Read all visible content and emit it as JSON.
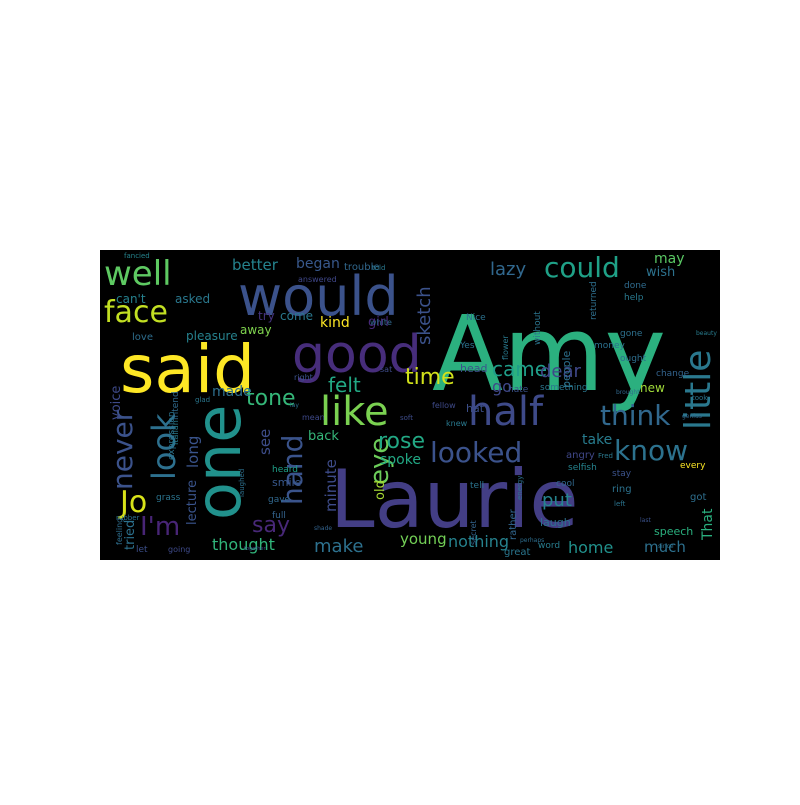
{
  "wordcloud": {
    "background": "#000000",
    "palette": {
      "dark_purple": "#440154",
      "purple": "#472c7a",
      "indigo": "#3b518b",
      "slate_blue": "#2c718e",
      "teal": "#21908d",
      "sea_green": "#27ad81",
      "green": "#5cc863",
      "lime": "#aadc32",
      "yellow": "#fde725"
    },
    "words": [
      {
        "text": "Amy",
        "color": "#2bb07f"
      },
      {
        "text": "Laurie",
        "color": "#433e85"
      },
      {
        "text": "said",
        "color": "#fde725"
      },
      {
        "text": "one",
        "color": "#21918c"
      },
      {
        "text": "would",
        "color": "#3b528b"
      },
      {
        "text": "good",
        "color": "#472d7b"
      },
      {
        "text": "well",
        "color": "#5ec962"
      },
      {
        "text": "half",
        "color": "#3e4a89"
      },
      {
        "text": "like",
        "color": "#7ad151"
      },
      {
        "text": "little",
        "color": "#2a788e"
      },
      {
        "text": "face",
        "color": "#c2df23"
      },
      {
        "text": "look",
        "color": "#2d708e"
      },
      {
        "text": "could",
        "color": "#1fa187"
      },
      {
        "text": "think",
        "color": "#31688e"
      },
      {
        "text": "looked",
        "color": "#3b528b"
      },
      {
        "text": "know",
        "color": "#2c728e"
      },
      {
        "text": "eye",
        "color": "#6ccd5a"
      },
      {
        "text": "hand",
        "color": "#3a538b"
      },
      {
        "text": "never",
        "color": "#3b528b"
      },
      {
        "text": "Jo",
        "color": "#d8e219"
      },
      {
        "text": "I'm",
        "color": "#482576"
      },
      {
        "text": "time",
        "color": "#d2e21b"
      },
      {
        "text": "tone",
        "color": "#35b779"
      },
      {
        "text": "rose",
        "color": "#22a884"
      },
      {
        "text": "came",
        "color": "#1f9e89"
      },
      {
        "text": "felt",
        "color": "#22a884"
      },
      {
        "text": "say",
        "color": "#482878"
      },
      {
        "text": "lazy",
        "color": "#31688e"
      },
      {
        "text": "dear",
        "color": "#3f4889"
      },
      {
        "text": "put",
        "color": "#25848e"
      },
      {
        "text": "make",
        "color": "#2d718e"
      },
      {
        "text": "home",
        "color": "#21918c"
      },
      {
        "text": "nothing",
        "color": "#26828e"
      },
      {
        "text": "thought",
        "color": "#31b57b"
      },
      {
        "text": "kind",
        "color": "#fde725"
      },
      {
        "text": "young",
        "color": "#73d056"
      },
      {
        "text": "sketch",
        "color": "#3b528b"
      },
      {
        "text": "minute",
        "color": "#3e4c8a"
      },
      {
        "text": "spoke",
        "color": "#22a884"
      },
      {
        "text": "take",
        "color": "#287c8e"
      },
      {
        "text": "better",
        "color": "#25838e"
      },
      {
        "text": "began",
        "color": "#38588c"
      },
      {
        "text": "go",
        "color": "#3f4788"
      },
      {
        "text": "made",
        "color": "#2e6f8e"
      },
      {
        "text": "may",
        "color": "#5ac864"
      },
      {
        "text": "wish",
        "color": "#2c728e"
      },
      {
        "text": "long",
        "color": "#3a548c"
      },
      {
        "text": "see",
        "color": "#3d4d8a"
      },
      {
        "text": "back",
        "color": "#35b779"
      },
      {
        "text": "much",
        "color": "#2d708e"
      },
      {
        "text": "That",
        "color": "#2ab07f"
      },
      {
        "text": "girl",
        "color": "#482878"
      },
      {
        "text": "old",
        "color": "#a8db34"
      },
      {
        "text": "voice",
        "color": "#3e4a89"
      },
      {
        "text": "lecture",
        "color": "#3a548c"
      },
      {
        "text": "tried",
        "color": "#2c718e"
      },
      {
        "text": "can't",
        "color": "#26818e"
      },
      {
        "text": "asked",
        "color": "#2a788e"
      },
      {
        "text": "try",
        "color": "#46337f"
      },
      {
        "text": "come",
        "color": "#2a788e"
      },
      {
        "text": "away",
        "color": "#7fd34e"
      },
      {
        "text": "pleasure",
        "color": "#26828e"
      },
      {
        "text": "trouble",
        "color": "#31688e"
      },
      {
        "text": "answered",
        "color": "#3f4788"
      },
      {
        "text": "fancied",
        "color": "#25848e"
      },
      {
        "text": "love",
        "color": "#2e6e8e"
      },
      {
        "text": "smile",
        "color": "#38588c"
      },
      {
        "text": "heard",
        "color": "#1fa088"
      },
      {
        "text": "mean",
        "color": "#3e4989"
      },
      {
        "text": "hat",
        "color": "#3c4f8a"
      },
      {
        "text": "head",
        "color": "#3b528b"
      },
      {
        "text": "Yes",
        "color": "#2c728e"
      },
      {
        "text": "laugh",
        "color": "#2d718e"
      },
      {
        "text": "word",
        "color": "#287d8e"
      },
      {
        "text": "great",
        "color": "#2a768e"
      },
      {
        "text": "angry",
        "color": "#3f4788"
      },
      {
        "text": "people",
        "color": "#2c718e"
      },
      {
        "text": "new",
        "color": "#a0da39"
      },
      {
        "text": "help",
        "color": "#29798e"
      },
      {
        "text": "done",
        "color": "#2f6b8e"
      },
      {
        "text": "speech",
        "color": "#2ab07f"
      },
      {
        "text": "got",
        "color": "#2e6f8e"
      },
      {
        "text": "every",
        "color": "#fde725"
      },
      {
        "text": "ring",
        "color": "#2c728e"
      },
      {
        "text": "stay",
        "color": "#3b528b"
      },
      {
        "text": "rather",
        "color": "#31668e"
      },
      {
        "text": "tell",
        "color": "#2b748e"
      },
      {
        "text": "secret",
        "color": "#33638d"
      },
      {
        "text": "cool",
        "color": "#31688e"
      },
      {
        "text": "something",
        "color": "#2a778e"
      },
      {
        "text": "without",
        "color": "#2b758e"
      },
      {
        "text": "hate",
        "color": "#3b528b"
      },
      {
        "text": "gone",
        "color": "#2d708e"
      },
      {
        "text": "ought",
        "color": "#2e6e8e"
      },
      {
        "text": "money",
        "color": "#2c718e"
      },
      {
        "text": "knew",
        "color": "#29798e"
      },
      {
        "text": "selfish",
        "color": "#25838e"
      },
      {
        "text": "grass",
        "color": "#2b748e"
      },
      {
        "text": "full",
        "color": "#33638d"
      },
      {
        "text": "gave",
        "color": "#31688e"
      },
      {
        "text": "let",
        "color": "#3c4f8a"
      },
      {
        "text": "going",
        "color": "#3e4a89"
      },
      {
        "text": "feeling",
        "color": "#2e6e8e"
      },
      {
        "text": "rubber",
        "color": "#2c718e"
      },
      {
        "text": "Italian",
        "color": "#287c8e"
      },
      {
        "text": "expression",
        "color": "#2b748e"
      },
      {
        "text": "intend",
        "color": "#306a8e"
      },
      {
        "text": "laughed",
        "color": "#2d708e"
      },
      {
        "text": "right",
        "color": "#3b528b"
      },
      {
        "text": "sat",
        "color": "#3e4c8a"
      },
      {
        "text": "white",
        "color": "#31688e"
      },
      {
        "text": "told",
        "color": "#2a788e"
      },
      {
        "text": "Nice",
        "color": "#2c728e"
      },
      {
        "text": "returned",
        "color": "#2e6f8e"
      },
      {
        "text": "change",
        "color": "#33638d"
      },
      {
        "text": "flower",
        "color": "#29798e"
      },
      {
        "text": "left",
        "color": "#2b748e"
      },
      {
        "text": "fellow",
        "color": "#3e4a89"
      },
      {
        "text": "brought",
        "color": "#31688e"
      },
      {
        "text": "energy",
        "color": "#2c718e"
      },
      {
        "text": "glad",
        "color": "#2a778e"
      },
      {
        "text": "shade",
        "color": "#33638d"
      },
      {
        "text": "together",
        "color": "#3c4f8a"
      },
      {
        "text": "perhaps",
        "color": "#2e6e8e"
      },
      {
        "text": "last",
        "color": "#3b528b"
      },
      {
        "text": "took",
        "color": "#2b748e"
      },
      {
        "text": "beauty",
        "color": "#287d8e"
      },
      {
        "text": "since",
        "color": "#2d718e"
      },
      {
        "text": "genius",
        "color": "#31688e"
      },
      {
        "text": "Fred",
        "color": "#2a788e"
      },
      {
        "text": "soft",
        "color": "#3e4c8a"
      },
      {
        "text": "lay",
        "color": "#2c728e"
      }
    ]
  }
}
